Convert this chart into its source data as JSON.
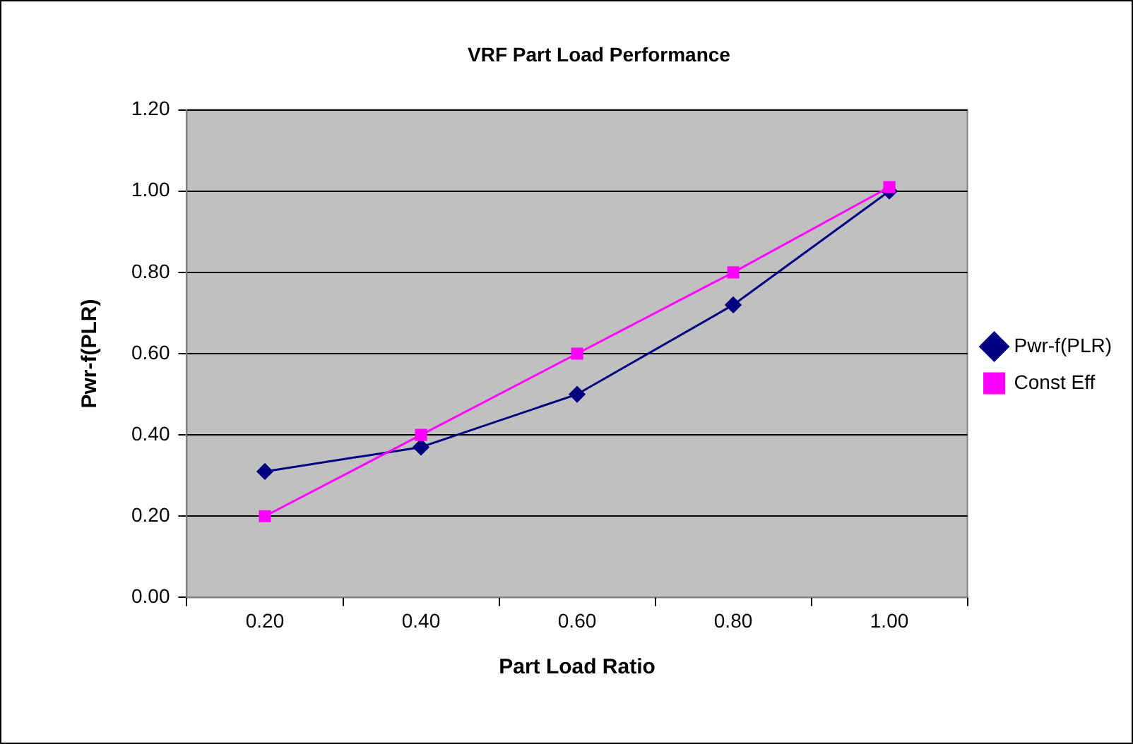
{
  "chart_data": {
    "type": "line",
    "title": "VRF Part Load Performance",
    "xlabel": "Part Load Ratio",
    "ylabel": "Pwr-f(PLR)",
    "categories": [
      "0.20",
      "0.40",
      "0.60",
      "0.80",
      "1.00"
    ],
    "series": [
      {
        "name": "Pwr-f(PLR)",
        "color": "#000080",
        "marker": "diamond",
        "values": [
          0.31,
          0.37,
          0.5,
          0.72,
          1.0
        ]
      },
      {
        "name": "Const Eff",
        "color": "#ff00ff",
        "marker": "square",
        "values": [
          0.2,
          0.4,
          0.6,
          0.8,
          1.01
        ]
      }
    ],
    "ylim": [
      0,
      1.2
    ],
    "yticks": [
      {
        "value": 0,
        "label": "0.00"
      },
      {
        "value": 0.2,
        "label": "0.20"
      },
      {
        "value": 0.4,
        "label": "0.40"
      },
      {
        "value": 0.6,
        "label": "0.60"
      },
      {
        "value": 0.8,
        "label": "0.80"
      },
      {
        "value": 1.0,
        "label": "1.00"
      },
      {
        "value": 1.2,
        "label": "1.20"
      }
    ],
    "grid": "y",
    "legend": "right",
    "line_style": "solid"
  }
}
